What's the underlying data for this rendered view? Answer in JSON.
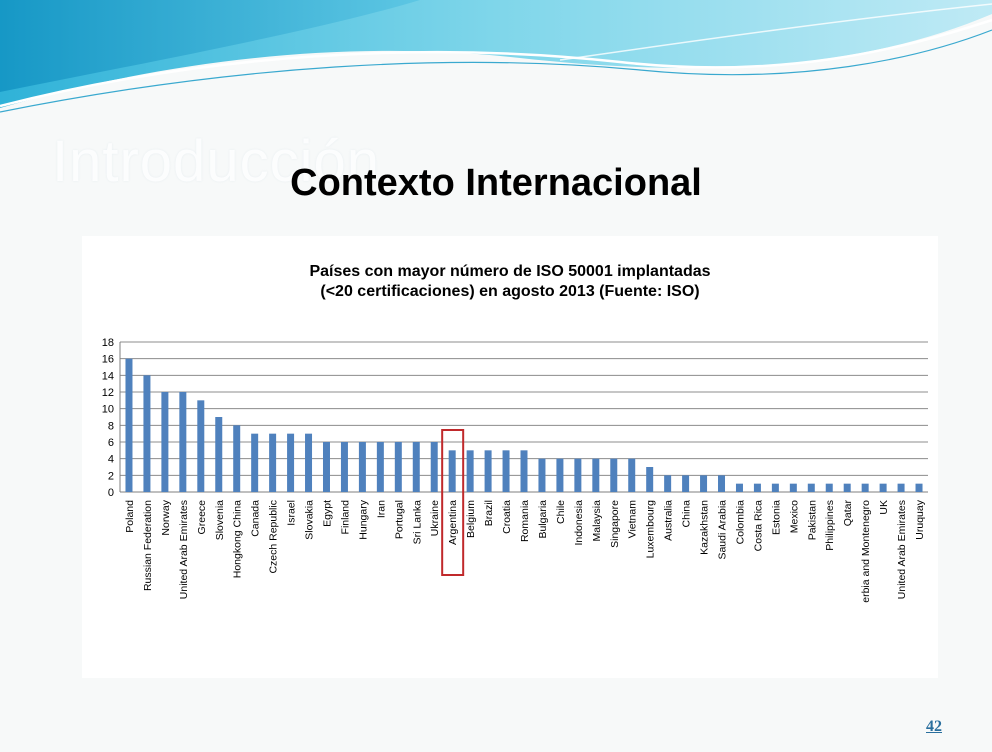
{
  "slide": {
    "ghost_title": "Introducción",
    "title": "Contexto Internacional",
    "page_number": "42"
  },
  "colors": {
    "bar": "#4f81bd",
    "grid": "#8c8c8c",
    "highlight_box": "#c0292b",
    "page_number": "#2a6f9e"
  },
  "chart_data": {
    "type": "bar",
    "title": "Países con mayor número de ISO 50001 implantadas",
    "subtitle": "(<20 certificaciones) en agosto 2013 (Fuente: ISO)",
    "xlabel": "",
    "ylabel": "",
    "ylim": [
      0,
      18
    ],
    "yticks": [
      0,
      2,
      4,
      6,
      8,
      10,
      12,
      14,
      16,
      18
    ],
    "grid": true,
    "legend": "none",
    "categories": [
      "Poland",
      "Russian Federation",
      "Norway",
      "United Arab Emirates",
      "Greece",
      "Slovenia",
      "Hongkong China",
      "Canada",
      "Czech Republic",
      "Israel",
      "Slovakia",
      "Egypt",
      "Finland",
      "Hungary",
      "Iran",
      "Portugal",
      "Sri Lanka",
      "Ukraine",
      "Argentina",
      "Belgium",
      "Brazil",
      "Croatia",
      "Romania",
      "Bulgaria",
      "Chile",
      "Indonesia",
      "Malaysia",
      "Singapore",
      "Vietnam",
      "Luxembourg",
      "Australia",
      "China",
      "Kazakhstan",
      "Saudi Arabia",
      "Colombia",
      "Costa Rica",
      "Estonia",
      "Mexico",
      "Pakistan",
      "Philippines",
      "Qatar",
      "erbia and Montenegro",
      "UK",
      "United Arab Emirates",
      "Uruquay"
    ],
    "values": [
      16,
      14,
      12,
      12,
      11,
      9,
      8,
      7,
      7,
      7,
      7,
      6,
      6,
      6,
      6,
      6,
      6,
      6,
      5,
      5,
      5,
      5,
      5,
      4,
      4,
      4,
      4,
      4,
      4,
      3,
      2,
      2,
      2,
      2,
      1,
      1,
      1,
      1,
      1,
      1,
      1,
      1,
      1,
      1,
      1
    ],
    "highlighted_category": "Argentina"
  }
}
